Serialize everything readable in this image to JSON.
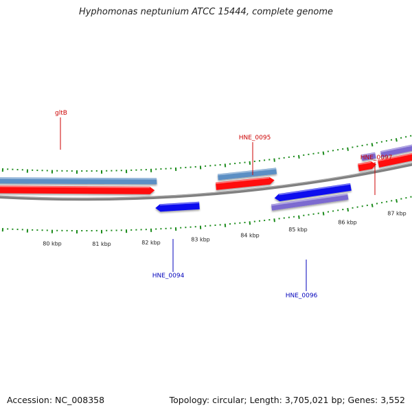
{
  "title": "Hyphomonas neptunium ATCC 15444, complete genome",
  "footer": {
    "accession": "Accession: NC_008358",
    "summary": "Topology: circular; Length: 3,705,021 bp; Genes: 3,552"
  },
  "colors": {
    "backbone": "#808080",
    "tick": "#1a8a1a",
    "forward_label": "#cc0000",
    "reverse_label": "#0000bb",
    "steelblue": "#5b8fc4",
    "red": "#ff1010",
    "blue": "#1010ee",
    "violet": "#7c6ad0"
  },
  "scale": {
    "unit": "kbp",
    "labels": [
      "80 kbp",
      "81 kbp",
      "82 kbp",
      "83 kbp",
      "84 kbp",
      "85 kbp",
      "86 kbp",
      "87 kbp"
    ]
  },
  "genes": {
    "forward_labels": [
      "gltB",
      "HNE_0095",
      "HNE_0097"
    ],
    "reverse_labels": [
      "HNE_0094",
      "HNE_0096"
    ]
  }
}
